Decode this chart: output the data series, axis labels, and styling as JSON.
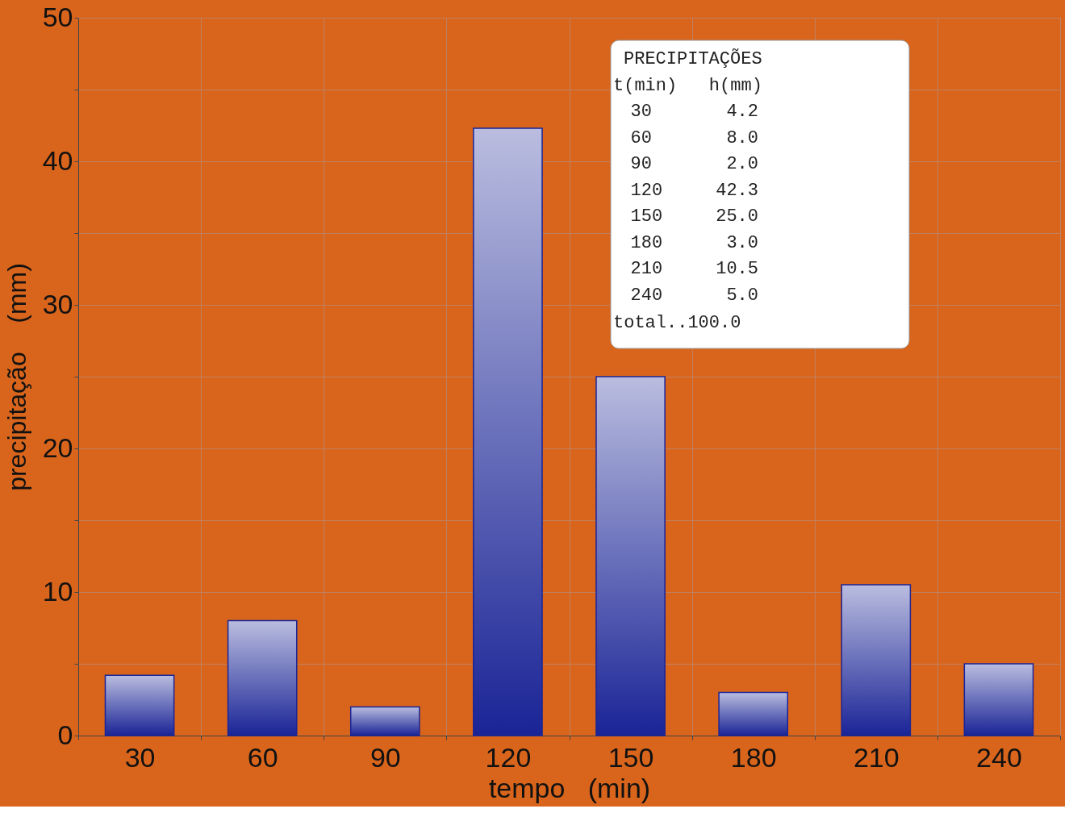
{
  "chart_data": {
    "type": "bar",
    "xlabel": "tempo   (min)",
    "ylabel": "precipitação    (mm)",
    "categories": [
      "30",
      "60",
      "90",
      "120",
      "150",
      "180",
      "210",
      "240"
    ],
    "values": [
      4.2,
      8.0,
      2.0,
      42.3,
      25.0,
      3.0,
      10.5,
      5.0
    ],
    "color": "#1a2496",
    "ylim": [
      0,
      50
    ],
    "yticks": [
      0,
      {
        "value": 5,
        "label": null
      },
      10,
      {
        "value": 15,
        "label": null
      },
      20,
      {
        "value": 25,
        "label": null
      },
      30,
      {
        "value": 35,
        "label": null
      },
      40,
      {
        "value": 45,
        "label": null
      },
      50
    ],
    "grid": true,
    "annotations": [
      "PRECIPITAÇÕES",
      "t(min)   h(mm)",
      "30       4.2",
      "60       8.0",
      "90       2.0",
      "120     42.3",
      "150     25.0",
      "180      3.0",
      "210     10.5",
      "240      5.0",
      "total..100.0"
    ]
  }
}
